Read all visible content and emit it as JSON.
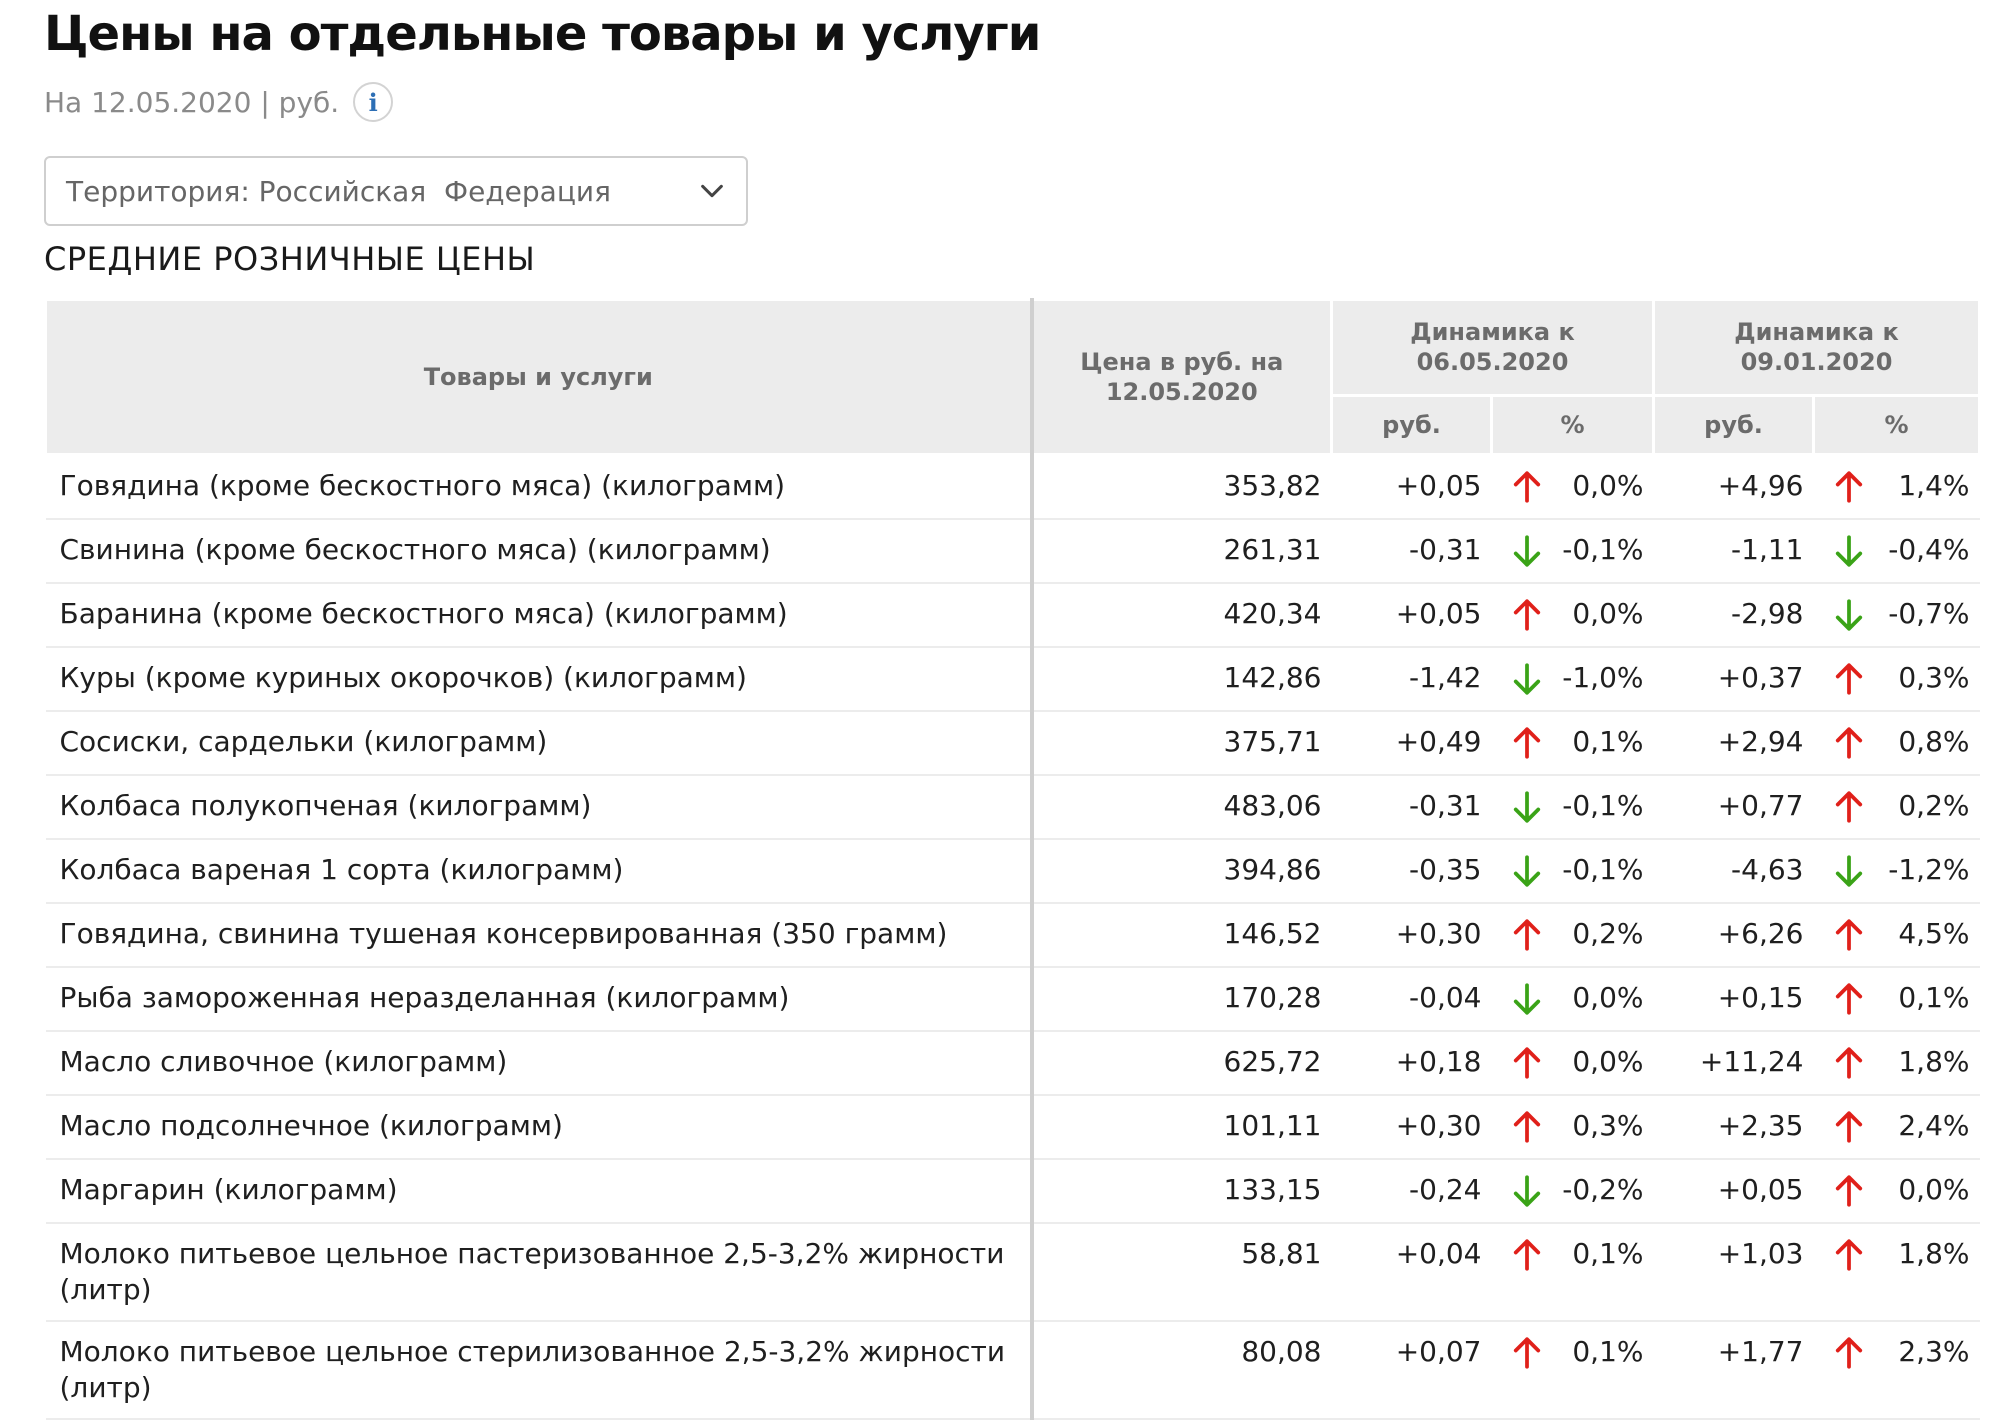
{
  "header": {
    "title": "Цены на отдельные товары и услуги",
    "subtitle": "На 12.05.2020 | руб.",
    "info_icon_glyph": "i"
  },
  "territory_select": {
    "value": "Территория: Российская  Федерация",
    "icon": "chevron-down-icon"
  },
  "section_title": "СРЕДНИЕ РОЗНИЧНЫЕ ЦЕНЫ",
  "colors": {
    "up": "#e0201a",
    "down": "#3aa317",
    "header_bg": "#ececec"
  },
  "table": {
    "headers": {
      "name": "Товары и услуги",
      "price": "Цена в руб. на 12.05.2020",
      "dyn1": "Динамика к 06.05.2020",
      "dyn2": "Динамика к 09.01.2020",
      "rub": "руб.",
      "pct": "%"
    },
    "rows": [
      {
        "name": "Говядина (кроме бескостного мяса) (килограмм)",
        "price": "353,82",
        "d1_rub": "+0,05",
        "d1_dir": "up",
        "d1_pct": "0,0%",
        "d2_rub": "+4,96",
        "d2_dir": "up",
        "d2_pct": "1,4%"
      },
      {
        "name": "Свинина (кроме бескостного мяса) (килограмм)",
        "price": "261,31",
        "d1_rub": "-0,31",
        "d1_dir": "down",
        "d1_pct": "-0,1%",
        "d2_rub": "-1,11",
        "d2_dir": "down",
        "d2_pct": "-0,4%"
      },
      {
        "name": "Баранина (кроме бескостного мяса) (килограмм)",
        "price": "420,34",
        "d1_rub": "+0,05",
        "d1_dir": "up",
        "d1_pct": "0,0%",
        "d2_rub": "-2,98",
        "d2_dir": "down",
        "d2_pct": "-0,7%"
      },
      {
        "name": "Куры (кроме куриных окорочков) (килограмм)",
        "price": "142,86",
        "d1_rub": "-1,42",
        "d1_dir": "down",
        "d1_pct": "-1,0%",
        "d2_rub": "+0,37",
        "d2_dir": "up",
        "d2_pct": "0,3%"
      },
      {
        "name": "Сосиски, сардельки (килограмм)",
        "price": "375,71",
        "d1_rub": "+0,49",
        "d1_dir": "up",
        "d1_pct": "0,1%",
        "d2_rub": "+2,94",
        "d2_dir": "up",
        "d2_pct": "0,8%"
      },
      {
        "name": "Колбаса полукопченая (килограмм)",
        "price": "483,06",
        "d1_rub": "-0,31",
        "d1_dir": "down",
        "d1_pct": "-0,1%",
        "d2_rub": "+0,77",
        "d2_dir": "up",
        "d2_pct": "0,2%"
      },
      {
        "name": "Колбаса вареная 1 сорта (килограмм)",
        "price": "394,86",
        "d1_rub": "-0,35",
        "d1_dir": "down",
        "d1_pct": "-0,1%",
        "d2_rub": "-4,63",
        "d2_dir": "down",
        "d2_pct": "-1,2%"
      },
      {
        "name": "Говядина, свинина тушеная консервированная (350 грамм)",
        "price": "146,52",
        "d1_rub": "+0,30",
        "d1_dir": "up",
        "d1_pct": "0,2%",
        "d2_rub": "+6,26",
        "d2_dir": "up",
        "d2_pct": "4,5%"
      },
      {
        "name": "Рыба замороженная неразделанная (килограмм)",
        "price": "170,28",
        "d1_rub": "-0,04",
        "d1_dir": "down",
        "d1_pct": "0,0%",
        "d2_rub": "+0,15",
        "d2_dir": "up",
        "d2_pct": "0,1%"
      },
      {
        "name": "Масло сливочное (килограмм)",
        "price": "625,72",
        "d1_rub": "+0,18",
        "d1_dir": "up",
        "d1_pct": "0,0%",
        "d2_rub": "+11,24",
        "d2_dir": "up",
        "d2_pct": "1,8%"
      },
      {
        "name": "Масло подсолнечное (килограмм)",
        "price": "101,11",
        "d1_rub": "+0,30",
        "d1_dir": "up",
        "d1_pct": "0,3%",
        "d2_rub": "+2,35",
        "d2_dir": "up",
        "d2_pct": "2,4%"
      },
      {
        "name": "Маргарин (килограмм)",
        "price": "133,15",
        "d1_rub": "-0,24",
        "d1_dir": "down",
        "d1_pct": "-0,2%",
        "d2_rub": "+0,05",
        "d2_dir": "up",
        "d2_pct": "0,0%"
      },
      {
        "name": "Молоко питьевое цельное пастеризованное 2,5-3,2% жирности (литр)",
        "price": "58,81",
        "d1_rub": "+0,04",
        "d1_dir": "up",
        "d1_pct": "0,1%",
        "d2_rub": "+1,03",
        "d2_dir": "up",
        "d2_pct": "1,8%"
      },
      {
        "name": "Молоко питьевое цельное стерилизованное 2,5-3,2% жирности (литр)",
        "price": "80,08",
        "d1_rub": "+0,07",
        "d1_dir": "up",
        "d1_pct": "0,1%",
        "d2_rub": "+1,77",
        "d2_dir": "up",
        "d2_pct": "2,3%"
      }
    ]
  }
}
